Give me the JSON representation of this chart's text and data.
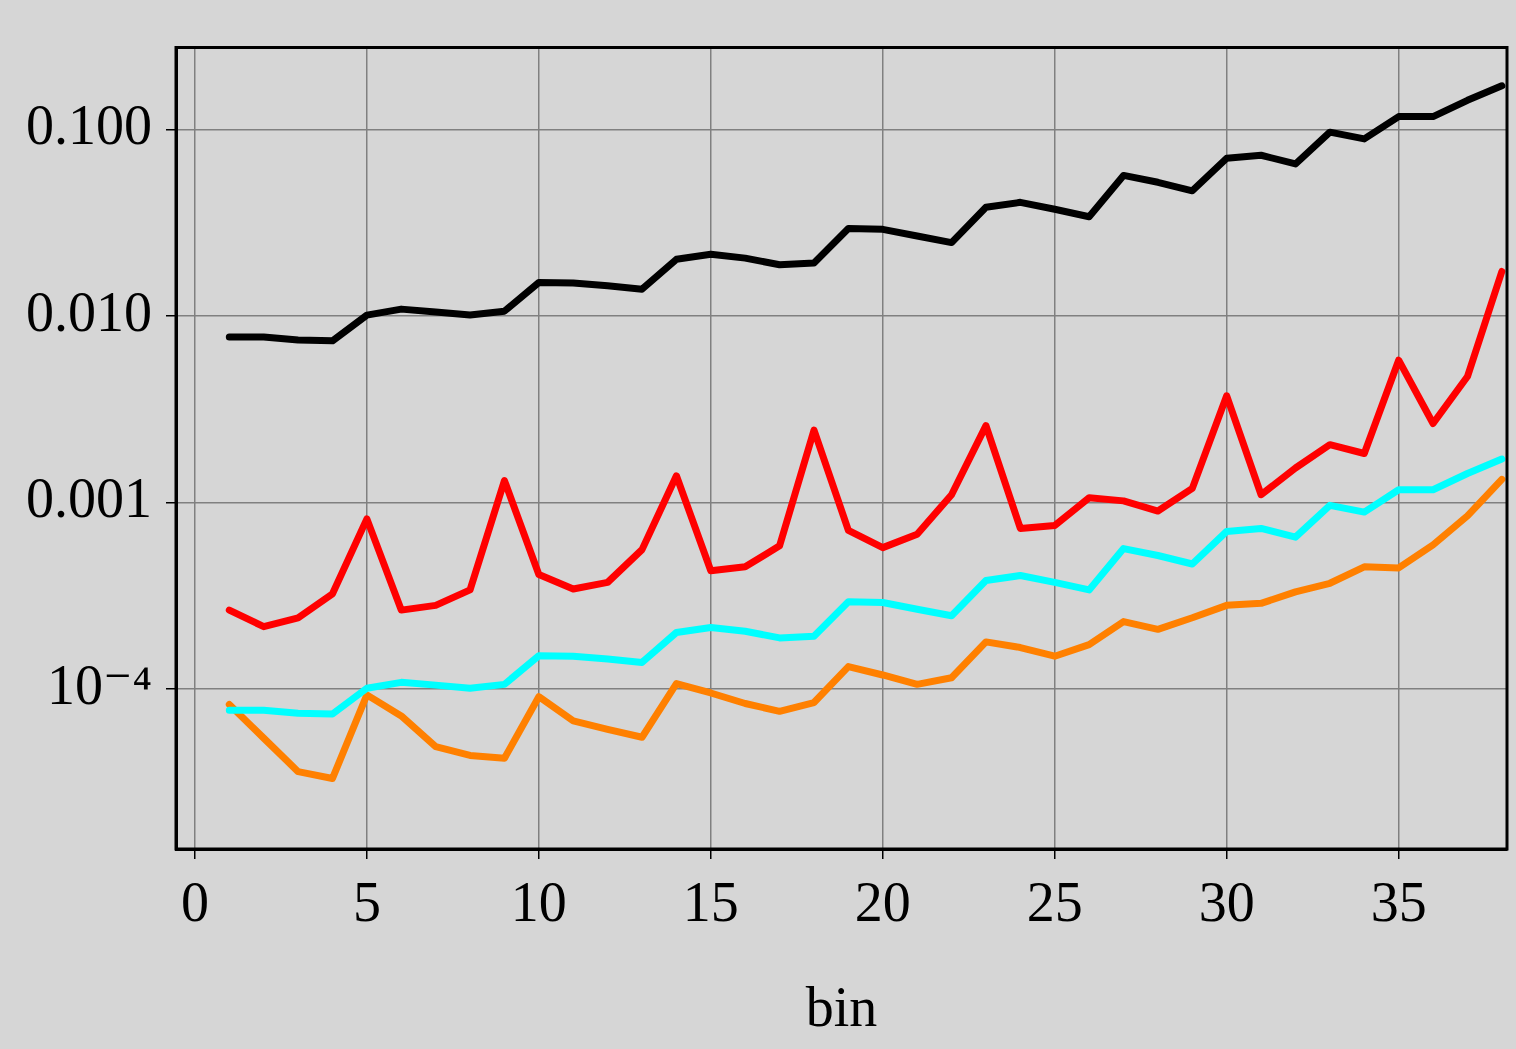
{
  "chart_data": {
    "type": "line",
    "xlabel": "bin",
    "x": [
      1,
      2,
      3,
      4,
      5,
      6,
      7,
      8,
      9,
      10,
      11,
      12,
      13,
      14,
      15,
      16,
      17,
      18,
      19,
      20,
      21,
      22,
      23,
      24,
      25,
      26,
      27,
      28,
      29,
      30,
      31,
      32,
      33,
      34,
      35,
      36,
      37,
      38
    ],
    "series": [
      {
        "color": "#000000",
        "values": [
          0.00771,
          0.00771,
          0.00743,
          0.00735,
          0.0101,
          0.01087,
          0.0105,
          0.0101,
          0.0106,
          0.0151,
          0.015,
          0.0145,
          0.0139,
          0.0201,
          0.0214,
          0.0204,
          0.0188,
          0.0192,
          0.0294,
          0.0291,
          0.0268,
          0.0247,
          0.0382,
          0.0406,
          0.0373,
          0.034,
          0.0566,
          0.052,
          0.0468,
          0.07,
          0.0726,
          0.0652,
          0.0965,
          0.0888,
          0.117,
          0.117,
          0.143,
          0.171
        ]
      },
      {
        "color": "#ff0000",
        "values": [
          0.000265,
          0.000216,
          0.000241,
          0.000324,
          0.000817,
          0.000265,
          0.000281,
          0.00034,
          0.00131,
          0.000411,
          0.000344,
          0.000373,
          0.000559,
          0.00139,
          0.000431,
          0.000452,
          0.000586,
          0.00244,
          0.000709,
          0.000573,
          0.000676,
          0.0011,
          0.00258,
          0.000726,
          0.000752,
          0.00106,
          0.00102,
          0.0009,
          0.00119,
          0.00373,
          0.0011,
          0.00153,
          0.00204,
          0.00183,
          0.00579,
          0.00265,
          0.00473,
          0.0173
        ]
      },
      {
        "color": "#00ffff",
        "values": [
          7.71e-05,
          7.71e-05,
          7.43e-05,
          7.35e-05,
          0.000101,
          0.0001087,
          0.000105,
          0.000101,
          0.000106,
          0.000151,
          0.00015,
          0.000145,
          0.000139,
          0.000201,
          0.000214,
          0.000204,
          0.000188,
          0.000192,
          0.000294,
          0.000291,
          0.000268,
          0.000247,
          0.000382,
          0.000406,
          0.000373,
          0.00034,
          0.000566,
          0.00052,
          0.000468,
          0.0007,
          0.000726,
          0.000652,
          0.000965,
          0.000888,
          0.00117,
          0.00117,
          0.00143,
          0.00171
        ]
      },
      {
        "color": "#ff8000",
        "values": [
          8.27e-05,
          5.46e-05,
          3.61e-05,
          3.32e-05,
          9.31e-05,
          7.18e-05,
          4.91e-05,
          4.41e-05,
          4.26e-05,
          9.1e-05,
          6.76e-05,
          6.08e-05,
          5.52e-05,
          0.000107,
          9.53e-05,
          8.37e-05,
          7.6e-05,
          8.47e-05,
          0.000132,
          0.000119,
          0.000106,
          0.000115,
          0.000179,
          0.000167,
          0.00015,
          0.000173,
          0.00023,
          0.000209,
          0.000241,
          0.000281,
          0.000288,
          0.000332,
          0.000369,
          0.000452,
          0.000446,
          0.000593,
          0.000847,
          0.00133
        ]
      }
    ],
    "xlim": [
      -0.55,
      38.15
    ],
    "xticks": [
      0,
      5,
      10,
      15,
      20,
      25,
      30,
      35
    ],
    "ylim": [
      1.39e-05,
      0.274
    ],
    "log": "y",
    "yticks": [
      {
        "value": 0.1,
        "label": "0.100"
      },
      {
        "value": 0.01,
        "label": "0.010"
      },
      {
        "value": 0.001,
        "label": "0.001"
      },
      {
        "value": 0.0001,
        "label": "10⁻⁴"
      }
    ],
    "grid": true,
    "legend": false,
    "marker": "none",
    "line_style": "solid"
  }
}
